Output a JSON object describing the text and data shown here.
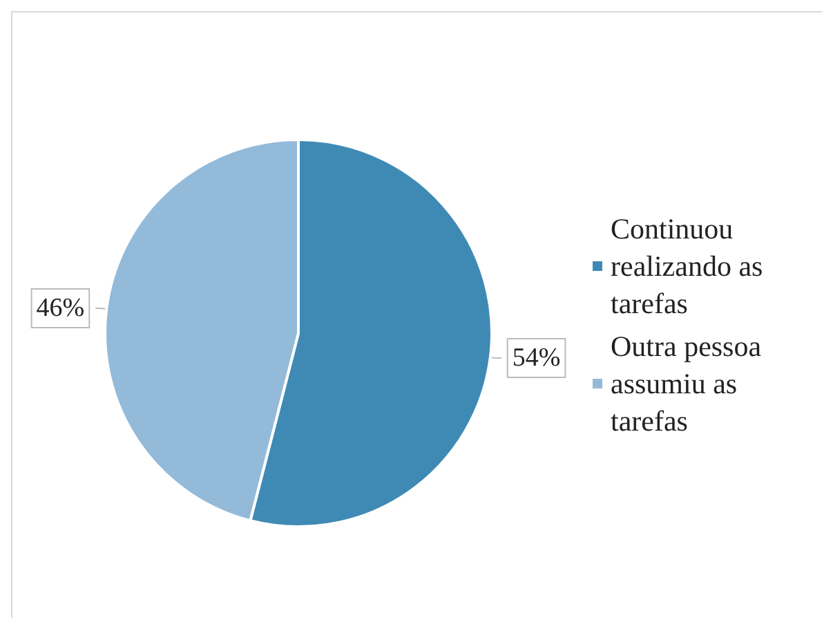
{
  "chart_data": {
    "type": "pie",
    "categories": [
      "Continuou realizando as tarefas",
      "Outra pessoa assumiu as tarefas"
    ],
    "values": [
      54,
      46
    ],
    "colors": [
      "#3f8ab4",
      "#94bad9"
    ],
    "value_labels": [
      "54%",
      "46%"
    ],
    "legend": "right"
  }
}
